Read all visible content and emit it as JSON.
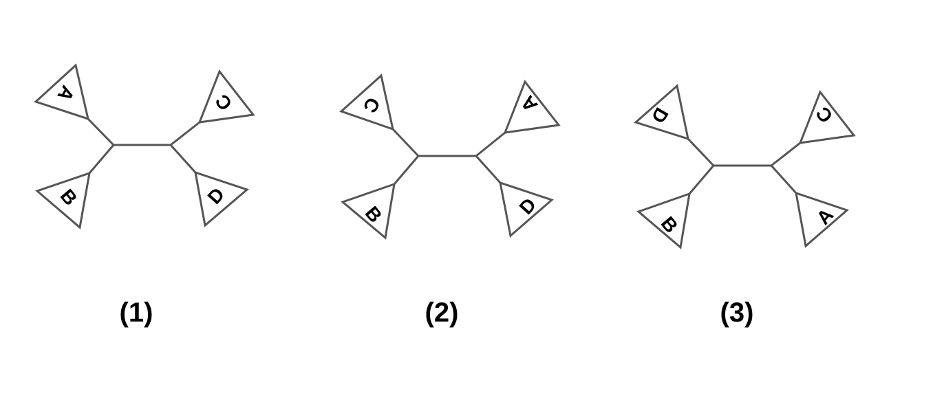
{
  "trees": [
    {
      "caption": "(1)",
      "leaves": {
        "upper_left": "A",
        "lower_left": "B",
        "upper_right": "C",
        "lower_right": "D"
      }
    },
    {
      "caption": "(2)",
      "leaves": {
        "upper_left": "C",
        "lower_left": "B",
        "upper_right": "A",
        "lower_right": "D"
      }
    },
    {
      "caption": "(3)",
      "leaves": {
        "upper_left": "D",
        "lower_left": "B",
        "upper_right": "C",
        "lower_right": "A"
      }
    }
  ],
  "colors": {
    "line": "#555555",
    "text": "#000000",
    "background": "#ffffff"
  }
}
